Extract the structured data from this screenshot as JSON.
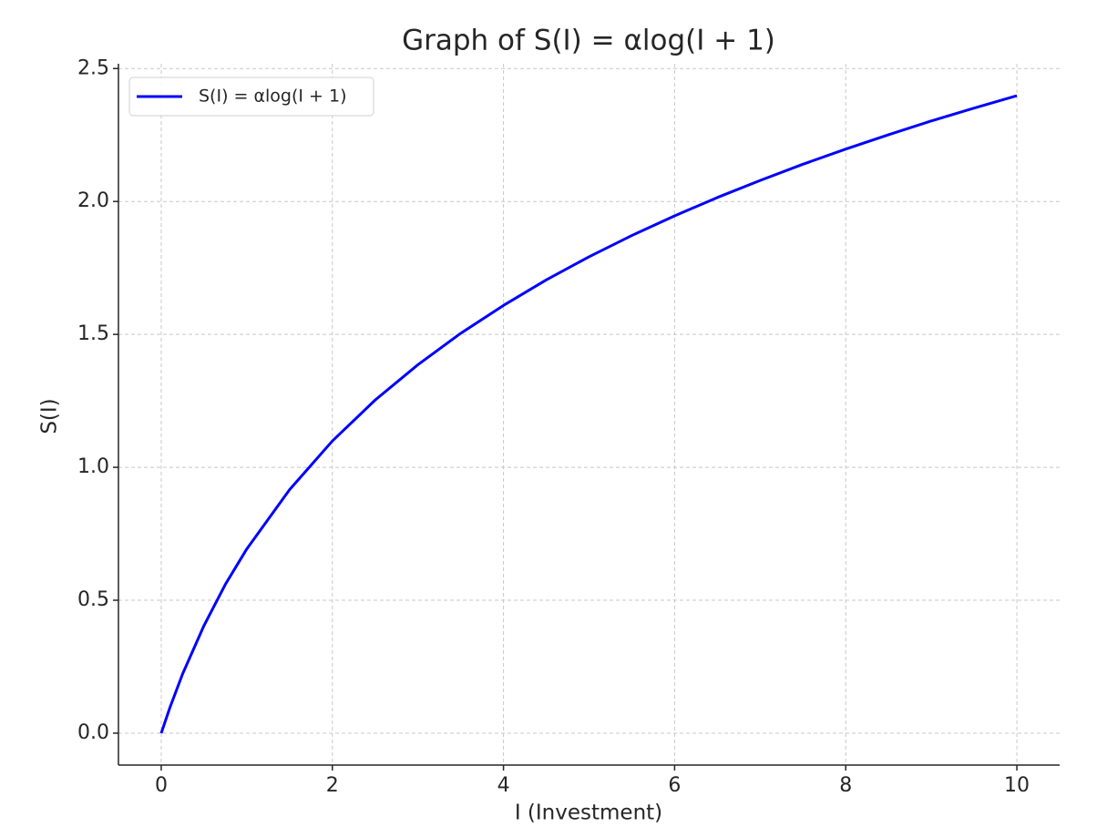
{
  "chart_data": {
    "type": "line",
    "title": "Graph of S(I) = αlog(I + 1)",
    "x_label": "I (Investment)",
    "y_label": "S(I)",
    "x": [
      0,
      0.1,
      0.25,
      0.5,
      0.75,
      1,
      1.5,
      2,
      2.5,
      3,
      3.5,
      4,
      4.5,
      5,
      5.5,
      6,
      6.5,
      7,
      7.5,
      8,
      8.5,
      9,
      9.5,
      10
    ],
    "series": [
      {
        "name": "S(I) = αlog(I + 1)",
        "color": "#0000ff",
        "values": [
          0,
          0.095,
          0.223,
          0.405,
          0.56,
          0.693,
          0.916,
          1.099,
          1.253,
          1.386,
          1.504,
          1.609,
          1.705,
          1.792,
          1.872,
          1.946,
          2.015,
          2.079,
          2.14,
          2.197,
          2.251,
          2.303,
          2.351,
          2.398
        ]
      }
    ],
    "xlim": [
      -0.5,
      10.5
    ],
    "xticks": [
      0,
      2,
      4,
      6,
      8,
      10
    ],
    "ylim": [
      -0.12,
      2.518
    ],
    "yticks": [
      {
        "value": 0,
        "label": "0.0"
      },
      0.5,
      {
        "value": 1,
        "label": "1.0"
      },
      1.5,
      {
        "value": 2,
        "label": "2.0"
      },
      2.5
    ],
    "grid": true,
    "legend": "upper left"
  }
}
